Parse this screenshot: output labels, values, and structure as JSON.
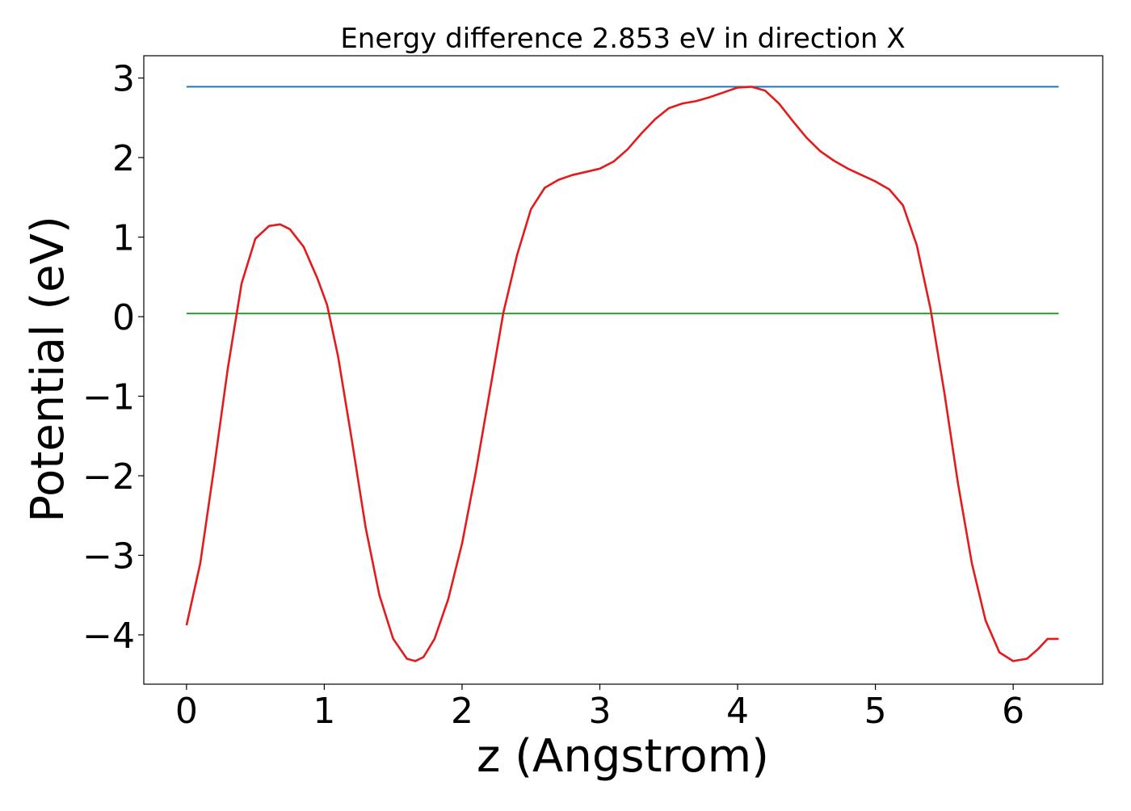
{
  "chart_data": {
    "type": "line",
    "title": "Energy difference 2.853 eV in direction X",
    "xlabel": "z (Angstrom)",
    "ylabel": "Potential (eV)",
    "xlim": [
      -0.31,
      6.65
    ],
    "ylim": [
      -4.62,
      3.28
    ],
    "xticks": [
      0,
      1,
      2,
      3,
      4,
      5,
      6
    ],
    "yticks": [
      3,
      2,
      1,
      0,
      -1,
      -2,
      -3,
      -4
    ],
    "ytick_labels": [
      "3",
      "2",
      "1",
      "0",
      "−1",
      "−2",
      "−3",
      "−4"
    ],
    "grid": false,
    "series": [
      {
        "color": "#1f77b4",
        "x": [
          0,
          6.33
        ],
        "y": [
          2.89,
          2.89
        ]
      },
      {
        "color": "#2ca02c",
        "x": [
          0,
          6.33
        ],
        "y": [
          0.04,
          0.04
        ]
      },
      {
        "color": "#e41a1c",
        "x": [
          0,
          0.1,
          0.2,
          0.3,
          0.4,
          0.5,
          0.6,
          0.68,
          0.75,
          0.85,
          0.95,
          1.02,
          1.1,
          1.2,
          1.3,
          1.4,
          1.5,
          1.6,
          1.66,
          1.72,
          1.8,
          1.9,
          2.0,
          2.1,
          2.2,
          2.3,
          2.4,
          2.5,
          2.6,
          2.7,
          2.8,
          2.9,
          3.0,
          3.1,
          3.2,
          3.3,
          3.4,
          3.5,
          3.6,
          3.7,
          3.8,
          3.9,
          4.0,
          4.1,
          4.2,
          4.3,
          4.4,
          4.5,
          4.6,
          4.7,
          4.8,
          4.9,
          5.0,
          5.1,
          5.2,
          5.3,
          5.4,
          5.5,
          5.6,
          5.7,
          5.8,
          5.9,
          6.0,
          6.1,
          6.18,
          6.25,
          6.33
        ],
        "y": [
          -3.88,
          -3.1,
          -1.9,
          -0.65,
          0.42,
          0.98,
          1.14,
          1.16,
          1.1,
          0.88,
          0.48,
          0.15,
          -0.5,
          -1.55,
          -2.65,
          -3.5,
          -4.05,
          -4.3,
          -4.33,
          -4.28,
          -4.05,
          -3.55,
          -2.85,
          -1.95,
          -0.95,
          0.05,
          0.78,
          1.35,
          1.62,
          1.72,
          1.78,
          1.82,
          1.86,
          1.95,
          2.1,
          2.3,
          2.48,
          2.62,
          2.68,
          2.71,
          2.76,
          2.82,
          2.88,
          2.89,
          2.84,
          2.68,
          2.46,
          2.25,
          2.08,
          1.96,
          1.86,
          1.78,
          1.7,
          1.6,
          1.4,
          0.9,
          0.1,
          -0.95,
          -2.1,
          -3.1,
          -3.82,
          -4.22,
          -4.33,
          -4.3,
          -4.18,
          -4.05,
          -4.05
        ]
      }
    ]
  }
}
